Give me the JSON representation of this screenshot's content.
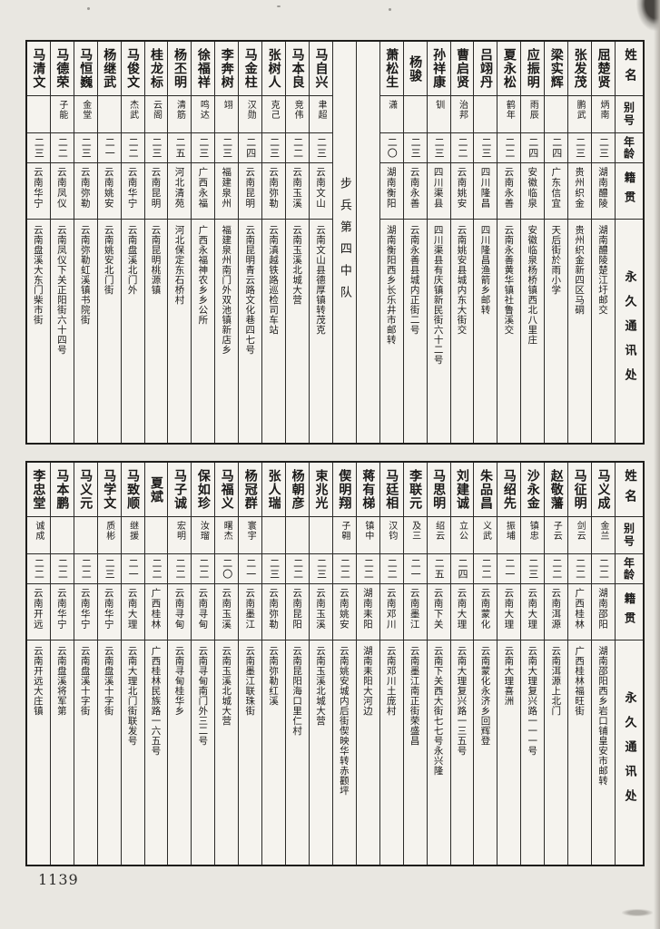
{
  "page": {
    "number": "1139"
  },
  "headers": {
    "name": "姓名",
    "alias": "别号",
    "age": "年龄",
    "origin": "籍贯",
    "address": "永久通讯处"
  },
  "top_table": {
    "unit_label": "步兵第四中队",
    "unit_label_after_index": 10,
    "persons": [
      {
        "name": "屈楚贤",
        "alias": "炳南",
        "age": "二三",
        "origin": "湖南醴陵",
        "address": "湖南醴陵楚江圩邮交"
      },
      {
        "name": "张发茂",
        "alias": "鹏武",
        "age": "二三",
        "origin": "贵州织金",
        "address": "贵州织金新四区马硐"
      },
      {
        "name": "梁实辉",
        "alias": "",
        "age": "二四",
        "origin": "广东信宜",
        "address": "天后街於雨小学"
      },
      {
        "name": "应振明",
        "alias": "雨辰",
        "age": "二四",
        "origin": "安徽临泉",
        "address": "安徽临泉杨桥镇西北八里庄"
      },
      {
        "name": "夏永松",
        "alias": "鹤年",
        "age": "二二",
        "origin": "云南永善",
        "address": "云南永善黄华镇社鲁溪交"
      },
      {
        "name": "吕翊丹",
        "alias": "",
        "age": "二三",
        "origin": "四川隆昌",
        "address": "四川隆昌渔箭乡邮转"
      },
      {
        "name": "曹启贤",
        "alias": "治邦",
        "age": "二二",
        "origin": "云南姚安",
        "address": "云南姚安县城内东大街交"
      },
      {
        "name": "孙祥康",
        "alias": "钏",
        "age": "二三",
        "origin": "四川渠县",
        "address": "四川渠县有庆镇新民街六十二号"
      },
      {
        "name": "杨骏",
        "alias": "",
        "age": "二三",
        "origin": "云南永善",
        "address": "云南永善县城内正街二号"
      },
      {
        "name": "萧松生",
        "alias": "潇",
        "age": "二〇",
        "origin": "湖南衡阳",
        "address": "湖南衡阳西乡长乐井市邮转"
      },
      {
        "name": "马自兴",
        "alias": "聿超",
        "age": "二三",
        "origin": "云南文山",
        "address": "云南文山县德厚镇转茂克"
      },
      {
        "name": "马本良",
        "alias": "竞伟",
        "age": "二二",
        "origin": "云南玉溪",
        "address": "云南玉溪北城大营"
      },
      {
        "name": "张树人",
        "alias": "克己",
        "age": "二三",
        "origin": "云南弥勒",
        "address": "云南滇越铁路巡检司车站"
      },
      {
        "name": "马金柱",
        "alias": "汉勋",
        "age": "二四",
        "origin": "云南昆明",
        "address": "云南昆明青云路文化巷四七号"
      },
      {
        "name": "李奔树",
        "alias": "翊",
        "age": "二三",
        "origin": "福建泉州",
        "address": "福建泉州南门外双池镇新店乡"
      },
      {
        "name": "徐福祥",
        "alias": "鸣达",
        "age": "二三",
        "origin": "广西永福",
        "address": "广西永福神农乡乡公所"
      },
      {
        "name": "杨丕明",
        "alias": "清筋",
        "age": "二五",
        "origin": "河北清苑",
        "address": "河北保定东石桥村"
      },
      {
        "name": "桂龙标",
        "alias": "云阁",
        "age": "二三",
        "origin": "云南昆明",
        "address": "云南昆明桃源镇"
      },
      {
        "name": "马俊文",
        "alias": "杰武",
        "age": "二二",
        "origin": "云南华宁",
        "address": "云南盘溪北门外"
      },
      {
        "name": "杨继武",
        "alias": "",
        "age": "二一",
        "origin": "云南姚安",
        "address": "云南姚安北门街"
      },
      {
        "name": "马恒巍",
        "alias": "金堂",
        "age": "二三",
        "origin": "云南弥勒",
        "address": "云南弥勒虹溪镇书院街"
      },
      {
        "name": "马德荣",
        "alias": "子能",
        "age": "二二",
        "origin": "云南凤仪",
        "address": "云南凤仪下关正阳街六十四号"
      },
      {
        "name": "马清文",
        "alias": "",
        "age": "二三",
        "origin": "云南华宁",
        "address": "云南盘溪大东门柴市街"
      }
    ]
  },
  "bottom_table": {
    "persons": [
      {
        "name": "马义成",
        "alias": "金兰",
        "age": "二二",
        "origin": "湖南邵阳",
        "address": "湖南邵阳西乡岩口铺皇安市邮转"
      },
      {
        "name": "马征明",
        "alias": "剑云",
        "age": "二二",
        "origin": "广西桂林",
        "address": "广西桂林福旺街"
      },
      {
        "name": "赵敬藩",
        "alias": "子云",
        "age": "二二",
        "origin": "云南洱源",
        "address": "云南洱源上北门"
      },
      {
        "name": "沙永金",
        "alias": "镇忠",
        "age": "二三",
        "origin": "云南大理",
        "address": "云南大理复兴路一一一号"
      },
      {
        "name": "马绍先",
        "alias": "振埔",
        "age": "二一",
        "origin": "云南大理",
        "address": "云南大理喜洲"
      },
      {
        "name": "朱品昌",
        "alias": "义武",
        "age": "二二",
        "origin": "云南蒙化",
        "address": "云南蒙化永济乡回辉登"
      },
      {
        "name": "刘建诚",
        "alias": "立公",
        "age": "二四",
        "origin": "云南大理",
        "address": "云南大理复兴路一三五号"
      },
      {
        "name": "马思明",
        "alias": "绍云",
        "age": "二五",
        "origin": "云南下关",
        "address": "云南下关西大街七七号永兴隆"
      },
      {
        "name": "李联元",
        "alias": "及三",
        "age": "二一",
        "origin": "云南墨江",
        "address": "云南墨江南正街荣盛昌"
      },
      {
        "name": "马廷相",
        "alias": "汉钧",
        "age": "二二",
        "origin": "云南邓川",
        "address": "云南邓川土庞村"
      },
      {
        "name": "蒋有梯",
        "alias": "镇中",
        "age": "二二",
        "origin": "湖南耒阳",
        "address": "湖南耒阳大河边"
      },
      {
        "name": "偰明翔",
        "alias": "子翱",
        "age": "二二",
        "origin": "云南姚安",
        "address": "云南姚安城内后街偰映华转赤颧坪"
      },
      {
        "name": "束兆光",
        "alias": "",
        "age": "二三",
        "origin": "云南玉溪",
        "address": "云南玉溪北城大营"
      },
      {
        "name": "杨朝彦",
        "alias": "",
        "age": "二二",
        "origin": "云南昆阳",
        "address": "云南昆阳海口里仁村"
      },
      {
        "name": "张人瑞",
        "alias": "",
        "age": "二三",
        "origin": "云南弥勒",
        "address": "云南弥勒红溪"
      },
      {
        "name": "杨冠群",
        "alias": "寰宇",
        "age": "二一",
        "origin": "云南墨江",
        "address": "云南墨江联珠街"
      },
      {
        "name": "马福义",
        "alias": "曙杰",
        "age": "二〇",
        "origin": "云南玉溪",
        "address": "云南玉溪北城大营"
      },
      {
        "name": "保如珍",
        "alias": "汝瑠",
        "age": "二二",
        "origin": "云南寻甸",
        "address": "云南寻甸南门外三二号"
      },
      {
        "name": "马子诚",
        "alias": "宏明",
        "age": "二二",
        "origin": "云南寻甸",
        "address": "云南寻甸桂华乡"
      },
      {
        "name": "夏斌",
        "alias": "",
        "age": "二二",
        "origin": "广西桂林",
        "address": "广西桂林民族路一六五号"
      },
      {
        "name": "马致顺",
        "alias": "继援",
        "age": "二一",
        "origin": "云南大理",
        "address": "云南大理北门街联发号"
      },
      {
        "name": "马学文",
        "alias": "质彬",
        "age": "二三",
        "origin": "云南华宁",
        "address": "云南盘溪十字街"
      },
      {
        "name": "马义元",
        "alias": "",
        "age": "二二",
        "origin": "云南华宁",
        "address": "云南盘溪十字街"
      },
      {
        "name": "马本鹏",
        "alias": "",
        "age": "二二",
        "origin": "云南华宁",
        "address": "云南盘溪将军第"
      },
      {
        "name": "李忠堂",
        "alias": "诚成",
        "age": "二二",
        "origin": "云南开远",
        "address": "云南开远大庄镇"
      }
    ]
  }
}
